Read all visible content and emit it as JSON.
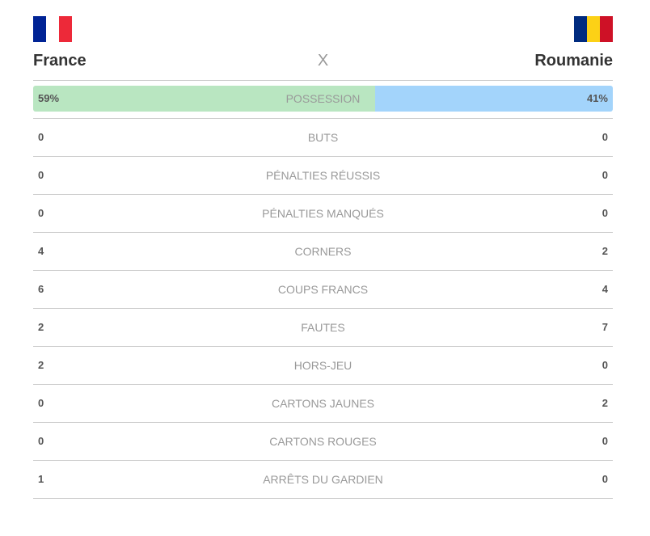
{
  "header": {
    "home": "France",
    "away": "Roumanie",
    "separator": "X"
  },
  "possession": {
    "label": "POSSESSION",
    "home": {
      "value": 59,
      "label": "59%"
    },
    "away": {
      "value": 41,
      "label": "41%"
    }
  },
  "stats": [
    {
      "label": "BUTS",
      "home": 0,
      "away": 0
    },
    {
      "label": "PÉNALTIES RÉUSSIS",
      "home": 0,
      "away": 0
    },
    {
      "label": "PÉNALTIES MANQUÉS",
      "home": 0,
      "away": 0
    },
    {
      "label": "CORNERS",
      "home": 4,
      "away": 2
    },
    {
      "label": "COUPS FRANCS",
      "home": 6,
      "away": 4
    },
    {
      "label": "FAUTES",
      "home": 2,
      "away": 7
    },
    {
      "label": "HORS-JEU",
      "home": 2,
      "away": 0
    },
    {
      "label": "CARTONS JAUNES",
      "home": 0,
      "away": 2
    },
    {
      "label": "CARTONS ROUGES",
      "home": 0,
      "away": 0
    },
    {
      "label": "ARRÊTS DU GARDIEN",
      "home": 1,
      "away": 0
    }
  ]
}
